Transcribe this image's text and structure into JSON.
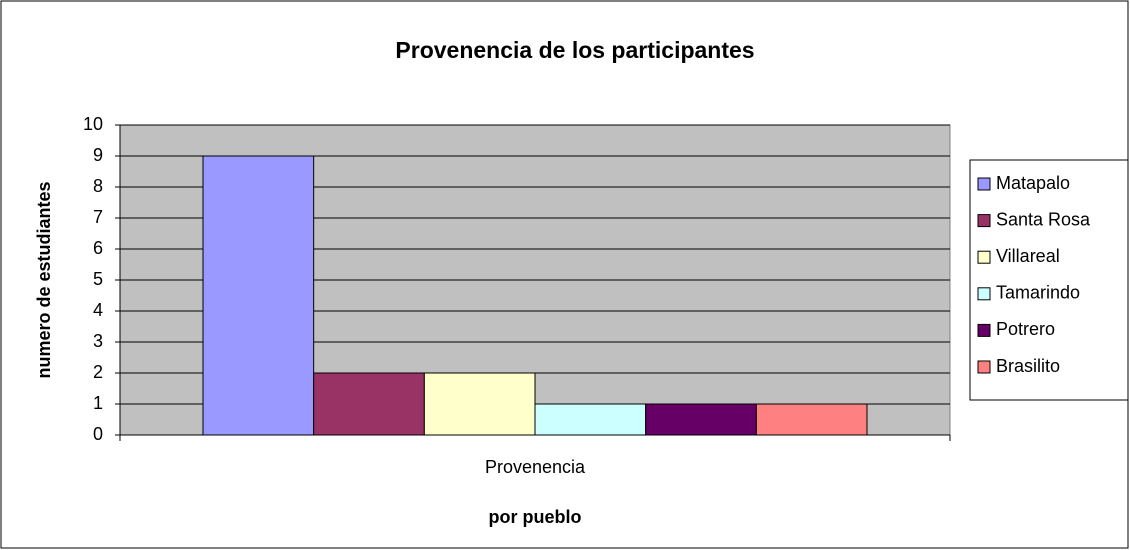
{
  "chart_data": {
    "type": "bar",
    "title": "Provenencia de los participantes",
    "x_label": "por pueblo",
    "y_label": "numero de estudiantes",
    "categories": [
      "Provenencia"
    ],
    "series": [
      {
        "name": "Matapalo",
        "color": "#9999ff",
        "values": [
          9
        ]
      },
      {
        "name": "Santa Rosa",
        "color": "#993366",
        "values": [
          2
        ]
      },
      {
        "name": "Villareal",
        "color": "#ffffcc",
        "values": [
          2
        ]
      },
      {
        "name": "Tamarindo",
        "color": "#ccffff",
        "values": [
          1
        ]
      },
      {
        "name": "Potrero",
        "color": "#660066",
        "values": [
          1
        ]
      },
      {
        "name": "Brasilito",
        "color": "#ff8080",
        "values": [
          1
        ]
      }
    ],
    "ylim": [
      0,
      10
    ],
    "yticks": [
      0,
      1,
      2,
      3,
      4,
      5,
      6,
      7,
      8,
      9,
      10
    ],
    "grid": true,
    "legend": "right"
  }
}
